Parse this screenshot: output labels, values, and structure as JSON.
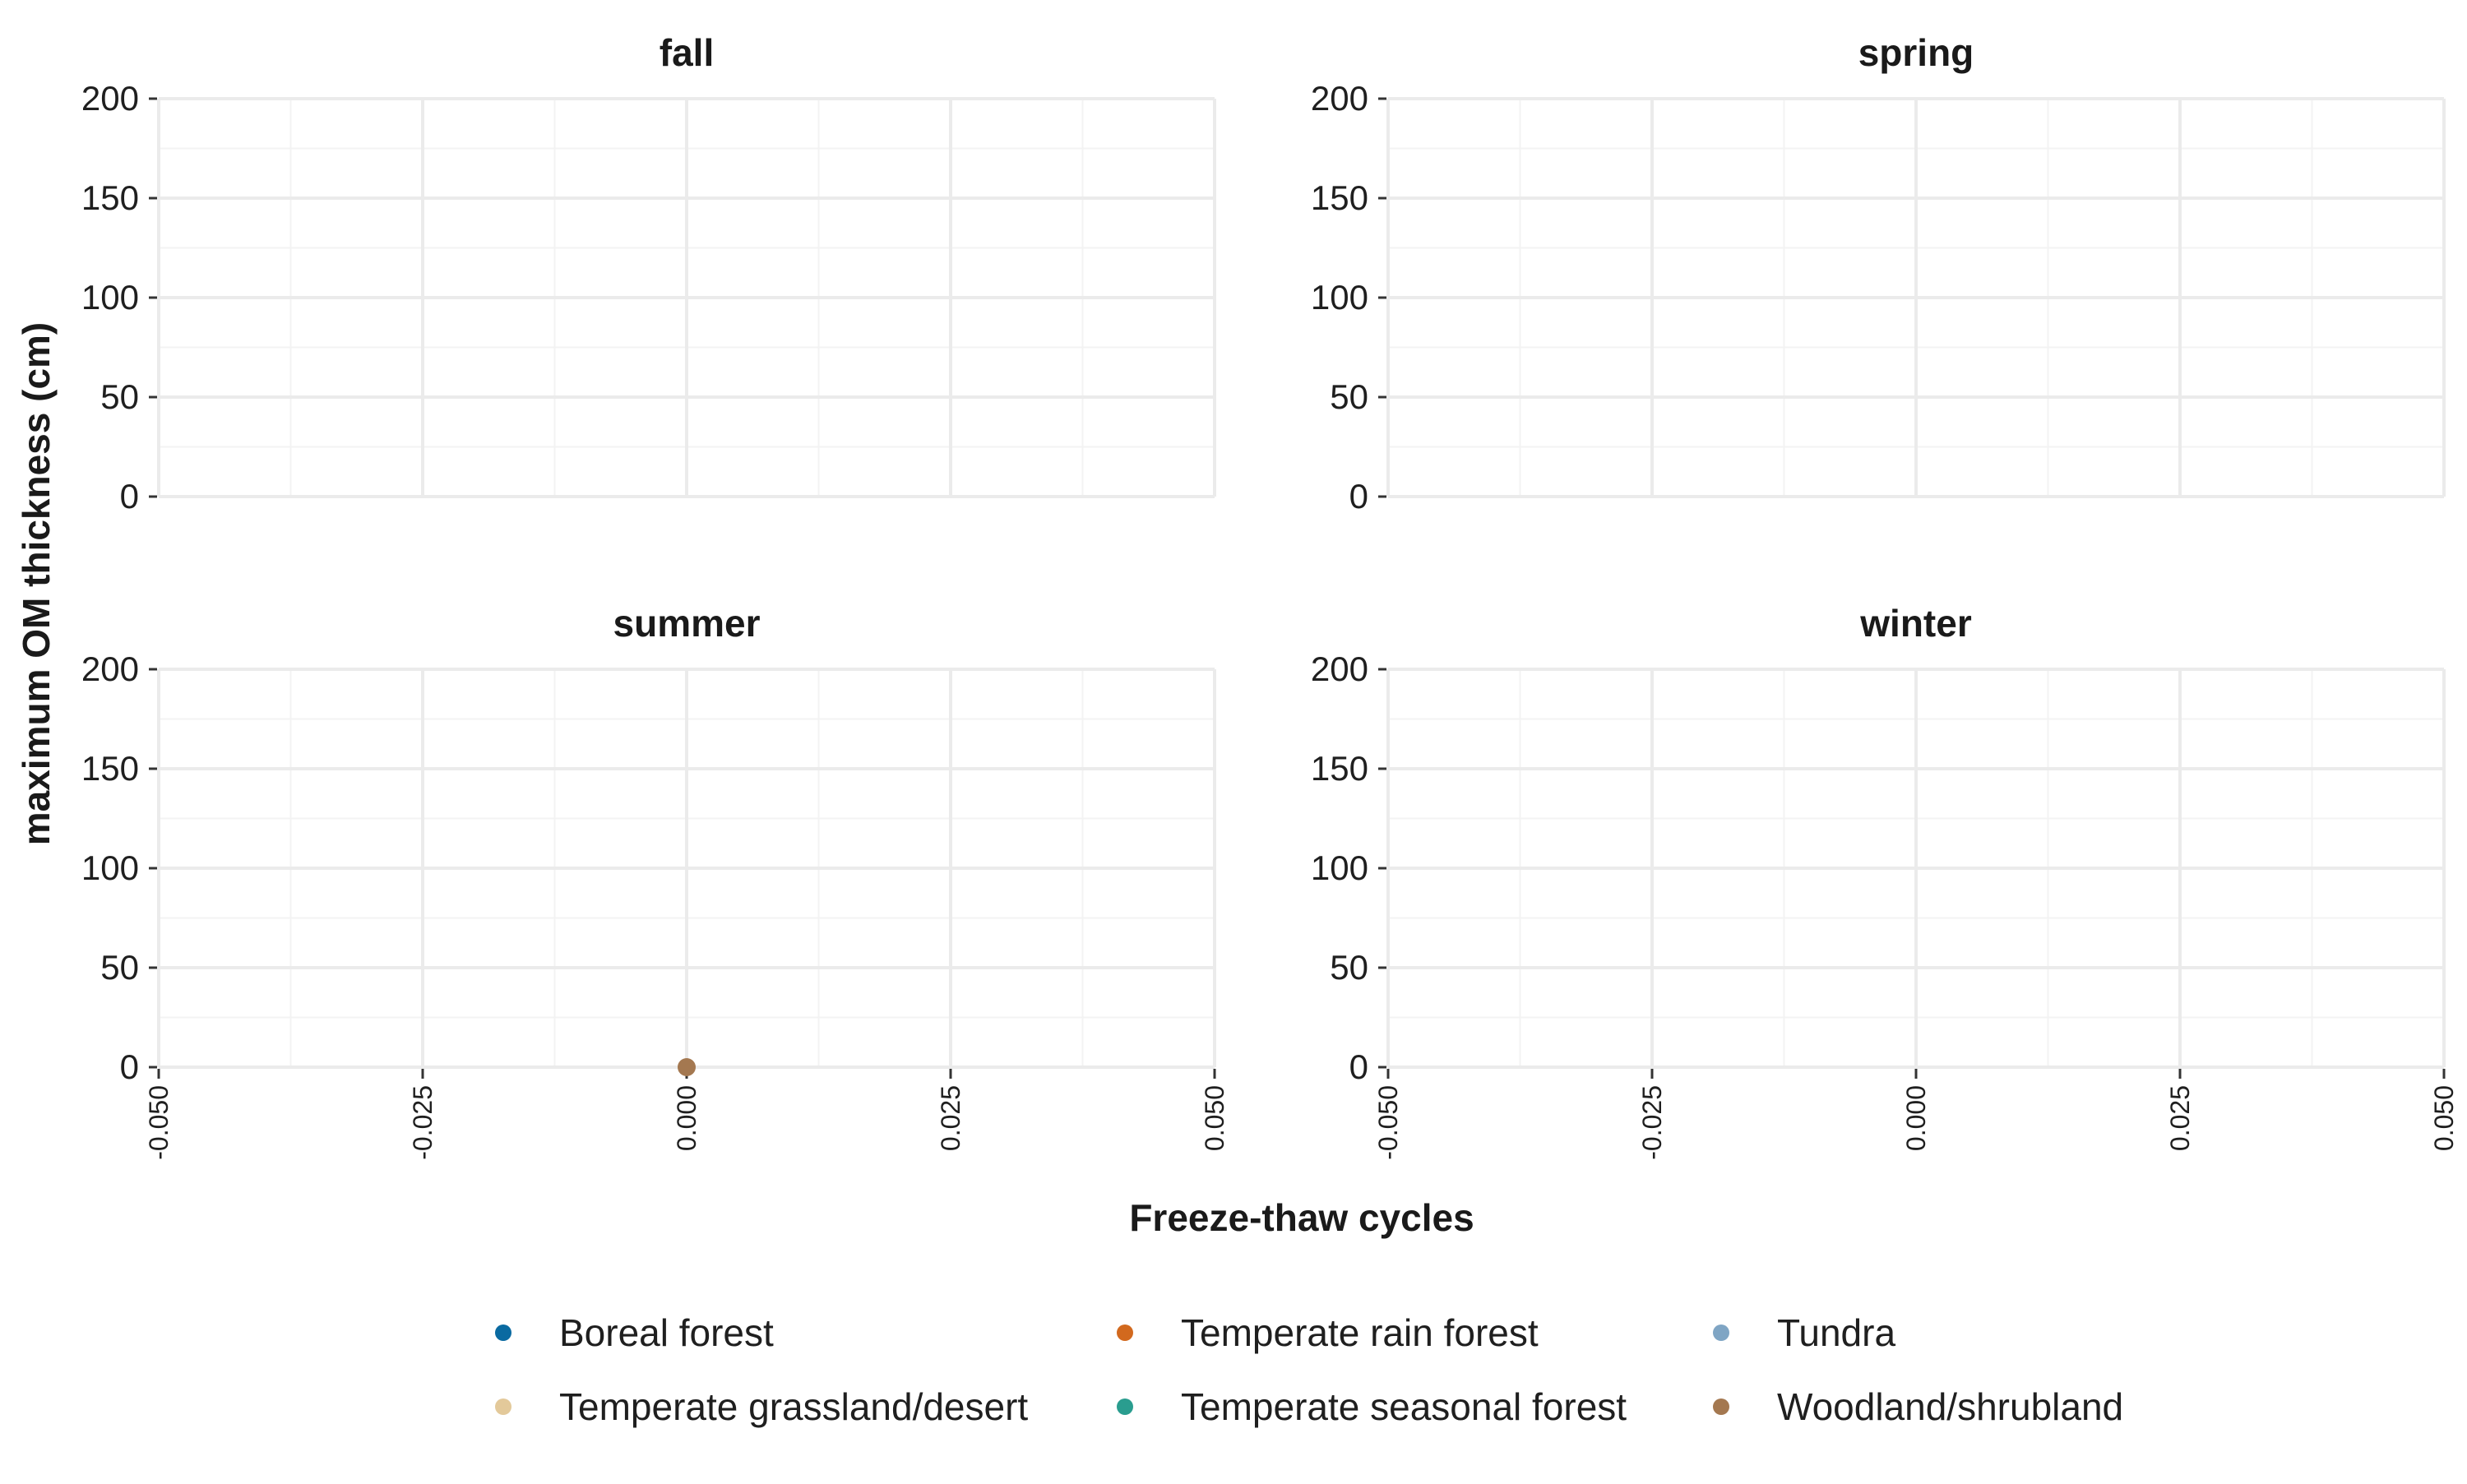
{
  "chart_data": {
    "type": "scatter",
    "layout": "facet_wrap",
    "xlabel": "Freeze-thaw cycles",
    "ylabel": "maximum OM thickness (cm)",
    "xlim": [
      -0.05,
      0.05
    ],
    "ylim": [
      0,
      200
    ],
    "x_ticks": [
      "-0.050",
      "-0.025",
      "0.000",
      "0.025",
      "0.050"
    ],
    "x_tick_values": [
      -0.05,
      -0.025,
      0,
      0.025,
      0.05
    ],
    "y_ticks": [
      "0",
      "50",
      "100",
      "150",
      "200"
    ],
    "y_tick_values": [
      0,
      50,
      100,
      150,
      200
    ],
    "grid": true,
    "legend_position": "bottom",
    "panels": [
      {
        "title": "fall",
        "points": []
      },
      {
        "title": "spring",
        "points": []
      },
      {
        "title": "summer",
        "points": [
          {
            "x": 0,
            "y": 0,
            "series": "Woodland/shrubland"
          }
        ]
      },
      {
        "title": "winter",
        "points": []
      }
    ],
    "series": [
      {
        "name": "Boreal forest",
        "color": "#0a6aa1"
      },
      {
        "name": "Temperate rain forest",
        "color": "#d2691e"
      },
      {
        "name": "Tundra",
        "color": "#7fa5c4"
      },
      {
        "name": "Temperate grassland/desert",
        "color": "#e3c99a"
      },
      {
        "name": "Temperate seasonal forest",
        "color": "#2a9d8f"
      },
      {
        "name": "Woodland/shrubland",
        "color": "#a47850"
      }
    ]
  }
}
